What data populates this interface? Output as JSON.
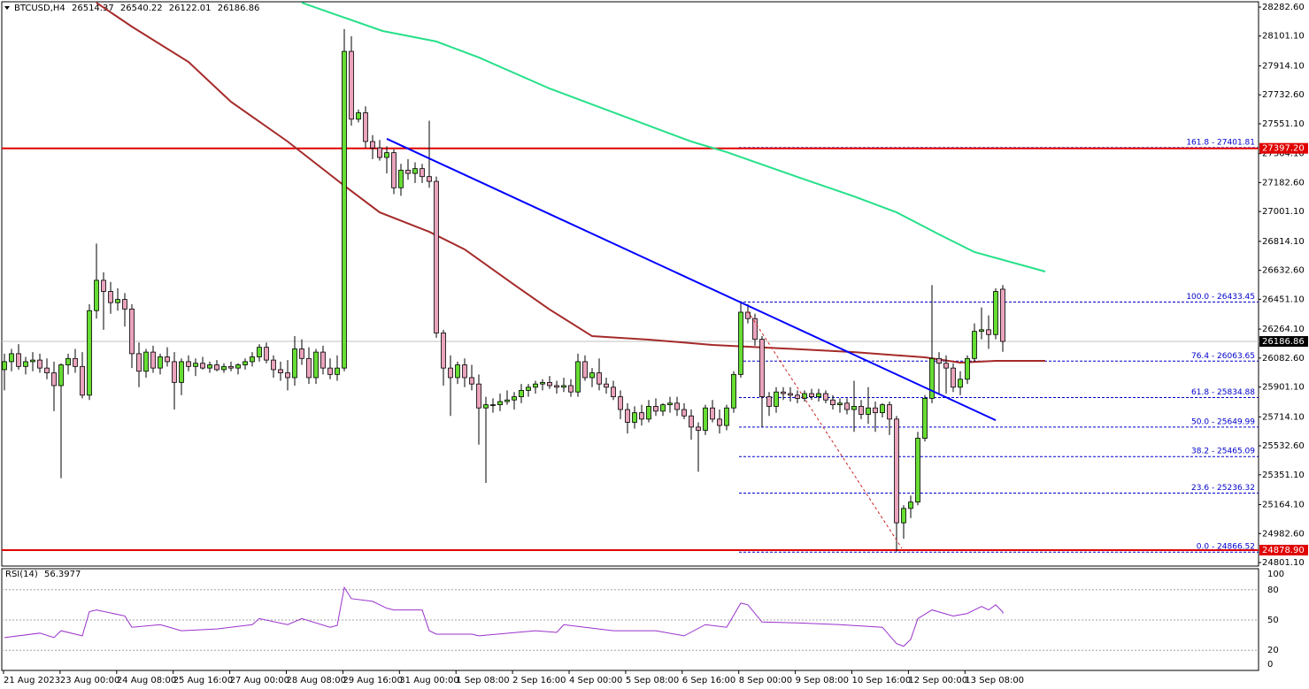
{
  "chart_data": {
    "type": "candlestick",
    "symbol": "BTCUSD,H4",
    "colors": {
      "up": "#66dd33",
      "down": "#eaa3bd",
      "outline": "#000000"
    },
    "ylim": [
      24778.9,
      28315.9
    ],
    "yticks": [
      {
        "value": 28282.6,
        "label": "28282.60"
      },
      {
        "value": 28101.1,
        "label": "28101.10"
      },
      {
        "value": 27914.1,
        "label": "27914.10"
      },
      {
        "value": 27732.6,
        "label": "27732.60"
      },
      {
        "value": 27551.1,
        "label": "27551.10"
      },
      {
        "value": 27364.1,
        "label": "27364.10"
      },
      {
        "value": 27182.6,
        "label": "27182.60"
      },
      {
        "value": 27001.1,
        "label": "27001.10"
      },
      {
        "value": 26814.1,
        "label": "26814.10"
      },
      {
        "value": 26632.6,
        "label": "26632.60"
      },
      {
        "value": 26451.1,
        "label": "26451.10"
      },
      {
        "value": 26264.1,
        "label": "26264.10"
      },
      {
        "value": 26082.6,
        "label": "26082.60"
      },
      {
        "value": 25901.1,
        "label": "25901.10"
      },
      {
        "value": 25714.1,
        "label": "25714.10"
      },
      {
        "value": 25532.6,
        "label": "25532.60"
      },
      {
        "value": 25351.1,
        "label": "25351.10"
      },
      {
        "value": 25164.1,
        "label": "25164.10"
      },
      {
        "value": 24982.6,
        "label": "24982.60"
      },
      {
        "value": 24801.1,
        "label": "24801.10"
      }
    ],
    "categories": [
      "21 Aug 2023",
      "23 Aug 00:00",
      "24 Aug 08:00",
      "25 Aug 16:00",
      "27 Aug 00:00",
      "28 Aug 08:00",
      "29 Aug 16:00",
      "31 Aug 00:00",
      "1 Sep 08:00",
      "2 Sep 16:00",
      "4 Sep 00:00",
      "5 Sep 08:00",
      "6 Sep 16:00",
      "8 Sep 00:00",
      "9 Sep 08:00",
      "10 Sep 16:00",
      "12 Sep 00:00",
      "13 Sep 08:00"
    ],
    "candles": [
      [
        26010,
        26110,
        25880,
        26060
      ],
      [
        26060,
        26140,
        26000,
        26110
      ],
      [
        26110,
        26170,
        26010,
        26030
      ],
      [
        26030,
        26090,
        25980,
        26060
      ],
      [
        26060,
        26120,
        26000,
        26070
      ],
      [
        26070,
        26110,
        25990,
        26020
      ],
      [
        26020,
        26080,
        25950,
        25990
      ],
      [
        25990,
        26060,
        25750,
        25910
      ],
      [
        25910,
        26050,
        25330,
        26040
      ],
      [
        26040,
        26110,
        25980,
        26080
      ],
      [
        26080,
        26140,
        25990,
        26030
      ],
      [
        26030,
        26120,
        25830,
        25850
      ],
      [
        25850,
        26420,
        25820,
        26380
      ],
      [
        26380,
        26800,
        26330,
        26570
      ],
      [
        26570,
        26620,
        26260,
        26500
      ],
      [
        26500,
        26560,
        26360,
        26430
      ],
      [
        26430,
        26520,
        26380,
        26450
      ],
      [
        26450,
        26490,
        26280,
        26390
      ],
      [
        26390,
        26420,
        26020,
        26110
      ],
      [
        26110,
        26180,
        25900,
        26000
      ],
      [
        26000,
        26140,
        25960,
        26120
      ],
      [
        26120,
        26160,
        25990,
        26020
      ],
      [
        26020,
        26110,
        25980,
        26090
      ],
      [
        26090,
        26150,
        26030,
        26060
      ],
      [
        26060,
        26120,
        25760,
        25930
      ],
      [
        25930,
        26080,
        25850,
        26060
      ],
      [
        26060,
        26100,
        26000,
        26030
      ],
      [
        26030,
        26080,
        25970,
        26050
      ],
      [
        26050,
        26090,
        26010,
        26020
      ],
      [
        26020,
        26060,
        25990,
        26040
      ],
      [
        26040,
        26070,
        26000,
        26010
      ],
      [
        26010,
        26050,
        25990,
        26030
      ],
      [
        26030,
        26060,
        26000,
        26020
      ],
      [
        26020,
        26050,
        25980,
        26040
      ],
      [
        26040,
        26080,
        26010,
        26060
      ],
      [
        26060,
        26120,
        26030,
        26090
      ],
      [
        26090,
        26170,
        26060,
        26150
      ],
      [
        26150,
        26180,
        26050,
        26070
      ],
      [
        26070,
        26100,
        25960,
        26010
      ],
      [
        26010,
        26060,
        25940,
        25990
      ],
      [
        25990,
        26070,
        25880,
        25960
      ],
      [
        25960,
        26220,
        25910,
        26140
      ],
      [
        26140,
        26200,
        26040,
        26080
      ],
      [
        26080,
        26150,
        25920,
        25960
      ],
      [
        25960,
        26140,
        25920,
        26120
      ],
      [
        26120,
        26160,
        25980,
        26020
      ],
      [
        26020,
        26080,
        25950,
        25980
      ],
      [
        25980,
        26100,
        25940,
        26020
      ],
      [
        26020,
        28145,
        26000,
        28005
      ],
      [
        28005,
        28100,
        27540,
        27580
      ],
      [
        27580,
        27640,
        27560,
        27620
      ],
      [
        27620,
        27660,
        27400,
        27440
      ],
      [
        27440,
        27480,
        27330,
        27400
      ],
      [
        27400,
        27450,
        27320,
        27340
      ],
      [
        27340,
        27410,
        27240,
        27370
      ],
      [
        27370,
        27390,
        27110,
        27150
      ],
      [
        27150,
        27300,
        27100,
        27260
      ],
      [
        27260,
        27330,
        27200,
        27240
      ],
      [
        27240,
        27310,
        27180,
        27270
      ],
      [
        27270,
        27300,
        27180,
        27220
      ],
      [
        27220,
        27570,
        27150,
        27190
      ],
      [
        27190,
        27220,
        26210,
        26240
      ],
      [
        26240,
        26260,
        25910,
        26020
      ],
      [
        26020,
        26100,
        25720,
        25960
      ],
      [
        25960,
        26060,
        25920,
        26040
      ],
      [
        26040,
        26080,
        25900,
        25960
      ],
      [
        25960,
        26040,
        25880,
        25920
      ],
      [
        25920,
        25980,
        25540,
        25770
      ],
      [
        25770,
        25840,
        25300,
        25790
      ],
      [
        25790,
        25830,
        25740,
        25790
      ],
      [
        25790,
        25860,
        25750,
        25810
      ],
      [
        25810,
        25880,
        25790,
        25820
      ],
      [
        25820,
        25870,
        25760,
        25840
      ],
      [
        25840,
        25920,
        25800,
        25880
      ],
      [
        25880,
        25920,
        25840,
        25900
      ],
      [
        25900,
        25940,
        25860,
        25920
      ],
      [
        25920,
        25950,
        25880,
        25930
      ],
      [
        25930,
        25970,
        25890,
        25910
      ],
      [
        25910,
        25940,
        25860,
        25900
      ],
      [
        25900,
        25960,
        25870,
        25910
      ],
      [
        25910,
        25950,
        25840,
        25870
      ],
      [
        25870,
        26110,
        25840,
        26060
      ],
      [
        26060,
        26100,
        25940,
        25960
      ],
      [
        25960,
        26020,
        25900,
        25990
      ],
      [
        25990,
        26080,
        25880,
        25920
      ],
      [
        25920,
        25960,
        25860,
        25900
      ],
      [
        25900,
        25940,
        25820,
        25840
      ],
      [
        25840,
        25880,
        25700,
        25760
      ],
      [
        25760,
        25800,
        25610,
        25680
      ],
      [
        25680,
        25780,
        25640,
        25740
      ],
      [
        25740,
        25790,
        25660,
        25700
      ],
      [
        25700,
        25820,
        25680,
        25780
      ],
      [
        25780,
        25830,
        25720,
        25750
      ],
      [
        25750,
        25800,
        25720,
        25790
      ],
      [
        25790,
        25840,
        25740,
        25800
      ],
      [
        25800,
        25840,
        25720,
        25760
      ],
      [
        25760,
        25800,
        25700,
        25720
      ],
      [
        25720,
        25760,
        25570,
        25650
      ],
      [
        25650,
        25680,
        25370,
        25630
      ],
      [
        25630,
        25790,
        25600,
        25770
      ],
      [
        25770,
        25820,
        25680,
        25700
      ],
      [
        25700,
        25760,
        25610,
        25660
      ],
      [
        25660,
        25790,
        25630,
        25770
      ],
      [
        25770,
        26000,
        25740,
        25980
      ],
      [
        25980,
        26440,
        25960,
        26370
      ],
      [
        26370,
        26420,
        26300,
        26330
      ],
      [
        26330,
        26360,
        26160,
        26200
      ],
      [
        26200,
        26220,
        25650,
        25840
      ],
      [
        25840,
        25870,
        25720,
        25780
      ],
      [
        25780,
        25900,
        25740,
        25870
      ],
      [
        25870,
        25900,
        25820,
        25860
      ],
      [
        25860,
        25900,
        25810,
        25850
      ],
      [
        25850,
        25880,
        25800,
        25830
      ],
      [
        25830,
        25880,
        25810,
        25860
      ],
      [
        25860,
        25890,
        25820,
        25840
      ],
      [
        25840,
        25890,
        25810,
        25860
      ],
      [
        25860,
        25880,
        25800,
        25820
      ],
      [
        25820,
        25850,
        25760,
        25790
      ],
      [
        25790,
        25830,
        25740,
        25800
      ],
      [
        25800,
        25830,
        25730,
        25760
      ],
      [
        25760,
        25940,
        25620,
        25780
      ],
      [
        25780,
        25820,
        25700,
        25730
      ],
      [
        25730,
        25900,
        25670,
        25770
      ],
      [
        25770,
        25810,
        25620,
        25740
      ],
      [
        25740,
        25800,
        25710,
        25790
      ],
      [
        25790,
        25810,
        25600,
        25700
      ],
      [
        25700,
        25720,
        24870,
        25050
      ],
      [
        25050,
        25160,
        24950,
        25140
      ],
      [
        25140,
        25220,
        25080,
        25180
      ],
      [
        25180,
        25620,
        25160,
        25580
      ],
      [
        25580,
        25850,
        25560,
        25830
      ],
      [
        25830,
        26540,
        25800,
        26080
      ],
      [
        26080,
        26120,
        25860,
        26050
      ],
      [
        26050,
        26100,
        25860,
        26020
      ],
      [
        26020,
        26050,
        25870,
        25900
      ],
      [
        25900,
        26000,
        25850,
        25950
      ],
      [
        25950,
        26100,
        25920,
        26080
      ],
      [
        26080,
        26300,
        26060,
        26250
      ],
      [
        26250,
        26400,
        26200,
        26260
      ],
      [
        26260,
        26350,
        26140,
        26230
      ],
      [
        26230,
        26520,
        26200,
        26500
      ],
      [
        26514.37,
        26540.22,
        26122.01,
        26186.86
      ]
    ],
    "moving_averages": [
      {
        "color": "#a52a2a",
        "x": [
          13,
          18,
          26,
          32,
          40,
          48,
          53,
          60,
          65,
          72,
          77,
          83,
          91,
          100,
          110,
          120,
          130,
          135,
          140,
          147
        ],
        "values": [
          28310,
          28160,
          27939,
          27689,
          27440,
          27163,
          26996,
          26874,
          26764,
          26542,
          26387,
          26220,
          26198,
          26165,
          26143,
          26120,
          26087,
          26054,
          26065,
          26065
        ]
      },
      {
        "color": "#26e08a",
        "x": [
          42,
          53.4,
          61,
          67,
          77,
          87,
          97,
          102,
          112,
          120,
          126,
          132,
          137,
          147
        ],
        "values": [
          28310,
          28133,
          28067,
          27967,
          27772,
          27606,
          27440,
          27374,
          27218,
          27096,
          26996,
          26858,
          26747,
          26625
        ]
      }
    ],
    "trendlines": [
      {
        "color": "#0000ff",
        "dashed": false,
        "x": [
          54,
          140
        ],
        "values": [
          27457,
          25693
        ]
      },
      {
        "color": "#cc2222",
        "dashed": true,
        "x": [
          105,
          126.75
        ],
        "values": [
          26376,
          24890
        ]
      }
    ],
    "price_lines": [
      {
        "value": 27397.2,
        "label": "27397.20",
        "color": "#e00000",
        "style": "solid"
      },
      {
        "value": 26186.86,
        "color": "#000000",
        "style": "current"
      },
      {
        "value": 24878.9,
        "label": "24878.90",
        "color": "#e00000",
        "style": "solid"
      }
    ],
    "fib_color": "#0000cc",
    "fib_levels": [
      {
        "value": 27401.81,
        "label": "161.8 - 27401.81"
      },
      {
        "value": 26433.45,
        "label": "100.0 - 26433.45"
      },
      {
        "value": 26063.65,
        "label": "76.4 - 26063.65"
      },
      {
        "value": 25834.88,
        "label": "61.8 - 25834.88"
      },
      {
        "value": 25649.99,
        "label": "50.0 - 25649.99"
      },
      {
        "value": 25465.09,
        "label": "38.2 - 25465.09"
      },
      {
        "value": 25236.32,
        "label": "23.6 - 25236.32"
      },
      {
        "value": 24866.52,
        "label": "0.0 - 24866.52"
      }
    ],
    "rsi": {
      "title": "RSI(14)",
      "color": "#9932cc",
      "ylim": [
        0,
        100
      ],
      "yticks": [
        100,
        80,
        50,
        20,
        0
      ],
      "x": [
        0,
        5,
        7,
        8,
        11,
        12,
        13,
        17,
        18,
        22,
        25,
        30,
        35,
        36,
        40,
        42,
        46,
        47,
        48,
        49,
        52,
        54,
        55,
        59,
        60,
        61,
        66,
        67,
        75,
        78,
        79,
        82,
        86,
        92,
        96,
        99,
        102,
        104,
        105,
        107,
        112,
        118,
        124,
        126,
        127,
        128,
        129,
        131,
        134,
        136,
        137,
        138,
        139,
        140,
        141,
        141
      ],
      "values": [
        32.6,
        37,
        32.6,
        39.4,
        34.3,
        58.3,
        60,
        54,
        42.8,
        45.4,
        39.4,
        41.1,
        45.4,
        51.4,
        45.4,
        51.4,
        42.8,
        44.6,
        82.3,
        71.2,
        68.5,
        61.7,
        60,
        60,
        39.4,
        36,
        36,
        34.3,
        39.4,
        37.7,
        45.4,
        42.8,
        39.4,
        39.4,
        34.3,
        45.4,
        42.8,
        66.8,
        65.1,
        48,
        47.1,
        45.4,
        42.8,
        26.6,
        24,
        30.8,
        51.4,
        60,
        54,
        56.5,
        60,
        63.4,
        60,
        65.1,
        58,
        56.3977
      ]
    }
  }
}
